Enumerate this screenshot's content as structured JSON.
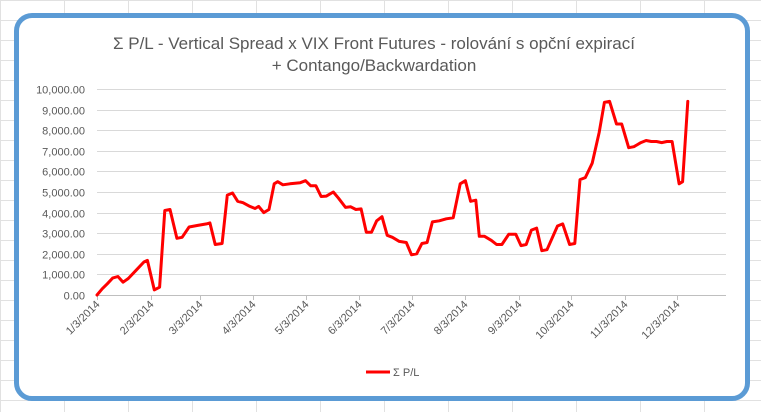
{
  "colors": {
    "series": "#ff0000",
    "frame": "#5b9bd5",
    "gridline": "#d9d9d9",
    "axis": "#bfbfbf",
    "text": "#595959",
    "sheet_grid": "#e1e1e1"
  },
  "chart_data": {
    "type": "line",
    "title_lines": [
      "Σ P/L - Vertical Spread x VIX Front Futures - rolování s opční expirací",
      "+ Contango/Backwardation"
    ],
    "xlabel": "",
    "ylabel": "",
    "ylim": [
      0,
      10000
    ],
    "y_ticks": [
      0,
      1000,
      2000,
      3000,
      4000,
      5000,
      6000,
      7000,
      8000,
      9000,
      10000
    ],
    "y_tick_labels": [
      "0.00",
      "1,000.00",
      "2,000.00",
      "3,000.00",
      "4,000.00",
      "5,000.00",
      "6,000.00",
      "7,000.00",
      "8,000.00",
      "9,000.00",
      "10,000.00"
    ],
    "x_tick_labels": [
      "1/3/2014",
      "2/3/2014",
      "3/3/2014",
      "4/3/2014",
      "5/3/2014",
      "6/3/2014",
      "7/3/2014",
      "8/3/2014",
      "9/3/2014",
      "10/3/2014",
      "11/3/2014",
      "12/3/2014"
    ],
    "x_tick_dates": [
      "2014-01-03",
      "2014-02-03",
      "2014-03-03",
      "2014-04-03",
      "2014-05-03",
      "2014-06-03",
      "2014-07-03",
      "2014-08-03",
      "2014-09-03",
      "2014-10-03",
      "2014-11-03",
      "2014-12-03"
    ],
    "x_range": [
      "2014-01-03",
      "2014-12-31"
    ],
    "grid": "horizontal",
    "legend_position": "bottom",
    "series": [
      {
        "name": "Σ P/L",
        "points": [
          [
            "2014-01-03",
            0
          ],
          [
            "2014-01-06",
            300
          ],
          [
            "2014-01-09",
            550
          ],
          [
            "2014-01-12",
            820
          ],
          [
            "2014-01-15",
            900
          ],
          [
            "2014-01-18",
            620
          ],
          [
            "2014-01-21",
            800
          ],
          [
            "2014-01-26",
            1250
          ],
          [
            "2014-01-30",
            1600
          ],
          [
            "2014-02-01",
            1680
          ],
          [
            "2014-02-05",
            250
          ],
          [
            "2014-02-08",
            380
          ],
          [
            "2014-02-11",
            4100
          ],
          [
            "2014-02-14",
            4150
          ],
          [
            "2014-02-18",
            2750
          ],
          [
            "2014-02-21",
            2800
          ],
          [
            "2014-02-25",
            3300
          ],
          [
            "2014-03-02",
            3380
          ],
          [
            "2014-03-07",
            3450
          ],
          [
            "2014-03-09",
            3500
          ],
          [
            "2014-03-12",
            2450
          ],
          [
            "2014-03-16",
            2500
          ],
          [
            "2014-03-19",
            4850
          ],
          [
            "2014-03-22",
            4950
          ],
          [
            "2014-03-25",
            4550
          ],
          [
            "2014-03-28",
            4480
          ],
          [
            "2014-04-01",
            4300
          ],
          [
            "2014-04-04",
            4200
          ],
          [
            "2014-04-06",
            4300
          ],
          [
            "2014-04-09",
            4000
          ],
          [
            "2014-04-12",
            4150
          ],
          [
            "2014-04-15",
            5400
          ],
          [
            "2014-04-17",
            5500
          ],
          [
            "2014-04-20",
            5350
          ],
          [
            "2014-04-24",
            5400
          ],
          [
            "2014-04-30",
            5450
          ],
          [
            "2014-05-03",
            5550
          ],
          [
            "2014-05-06",
            5300
          ],
          [
            "2014-05-09",
            5300
          ],
          [
            "2014-05-12",
            4780
          ],
          [
            "2014-05-15",
            4800
          ],
          [
            "2014-05-19",
            5000
          ],
          [
            "2014-05-22",
            4700
          ],
          [
            "2014-05-26",
            4250
          ],
          [
            "2014-05-29",
            4280
          ],
          [
            "2014-06-01",
            4150
          ],
          [
            "2014-06-04",
            4180
          ],
          [
            "2014-06-07",
            3050
          ],
          [
            "2014-06-10",
            3050
          ],
          [
            "2014-06-13",
            3600
          ],
          [
            "2014-06-16",
            3800
          ],
          [
            "2014-06-19",
            2900
          ],
          [
            "2014-06-22",
            2800
          ],
          [
            "2014-06-26",
            2600
          ],
          [
            "2014-06-30",
            2550
          ],
          [
            "2014-07-03",
            1950
          ],
          [
            "2014-07-06",
            2000
          ],
          [
            "2014-07-09",
            2500
          ],
          [
            "2014-07-12",
            2550
          ],
          [
            "2014-07-15",
            3550
          ],
          [
            "2014-07-19",
            3600
          ],
          [
            "2014-07-23",
            3700
          ],
          [
            "2014-07-27",
            3750
          ],
          [
            "2014-07-31",
            5400
          ],
          [
            "2014-08-03",
            5550
          ],
          [
            "2014-08-06",
            4550
          ],
          [
            "2014-08-09",
            4600
          ],
          [
            "2014-08-11",
            2850
          ],
          [
            "2014-08-14",
            2850
          ],
          [
            "2014-08-18",
            2650
          ],
          [
            "2014-08-21",
            2450
          ],
          [
            "2014-08-24",
            2450
          ],
          [
            "2014-08-28",
            2950
          ],
          [
            "2014-09-01",
            2950
          ],
          [
            "2014-09-04",
            2400
          ],
          [
            "2014-09-07",
            2450
          ],
          [
            "2014-09-10",
            3150
          ],
          [
            "2014-09-13",
            3250
          ],
          [
            "2014-09-16",
            2150
          ],
          [
            "2014-09-19",
            2200
          ],
          [
            "2014-09-25",
            3350
          ],
          [
            "2014-09-28",
            3450
          ],
          [
            "2014-10-02",
            2450
          ],
          [
            "2014-10-05",
            2500
          ],
          [
            "2014-10-08",
            5600
          ],
          [
            "2014-10-11",
            5700
          ],
          [
            "2014-10-15",
            6400
          ],
          [
            "2014-10-19",
            7900
          ],
          [
            "2014-10-22",
            9350
          ],
          [
            "2014-10-25",
            9400
          ],
          [
            "2014-10-29",
            8300
          ],
          [
            "2014-11-01",
            8300
          ],
          [
            "2014-11-05",
            7150
          ],
          [
            "2014-11-08",
            7200
          ],
          [
            "2014-11-12",
            7400
          ],
          [
            "2014-11-15",
            7500
          ],
          [
            "2014-11-18",
            7450
          ],
          [
            "2014-11-21",
            7450
          ],
          [
            "2014-11-24",
            7400
          ],
          [
            "2014-11-27",
            7450
          ],
          [
            "2014-11-30",
            7450
          ],
          [
            "2014-12-04",
            5400
          ],
          [
            "2014-12-06",
            5500
          ],
          [
            "2014-12-09",
            9400
          ]
        ]
      }
    ]
  }
}
